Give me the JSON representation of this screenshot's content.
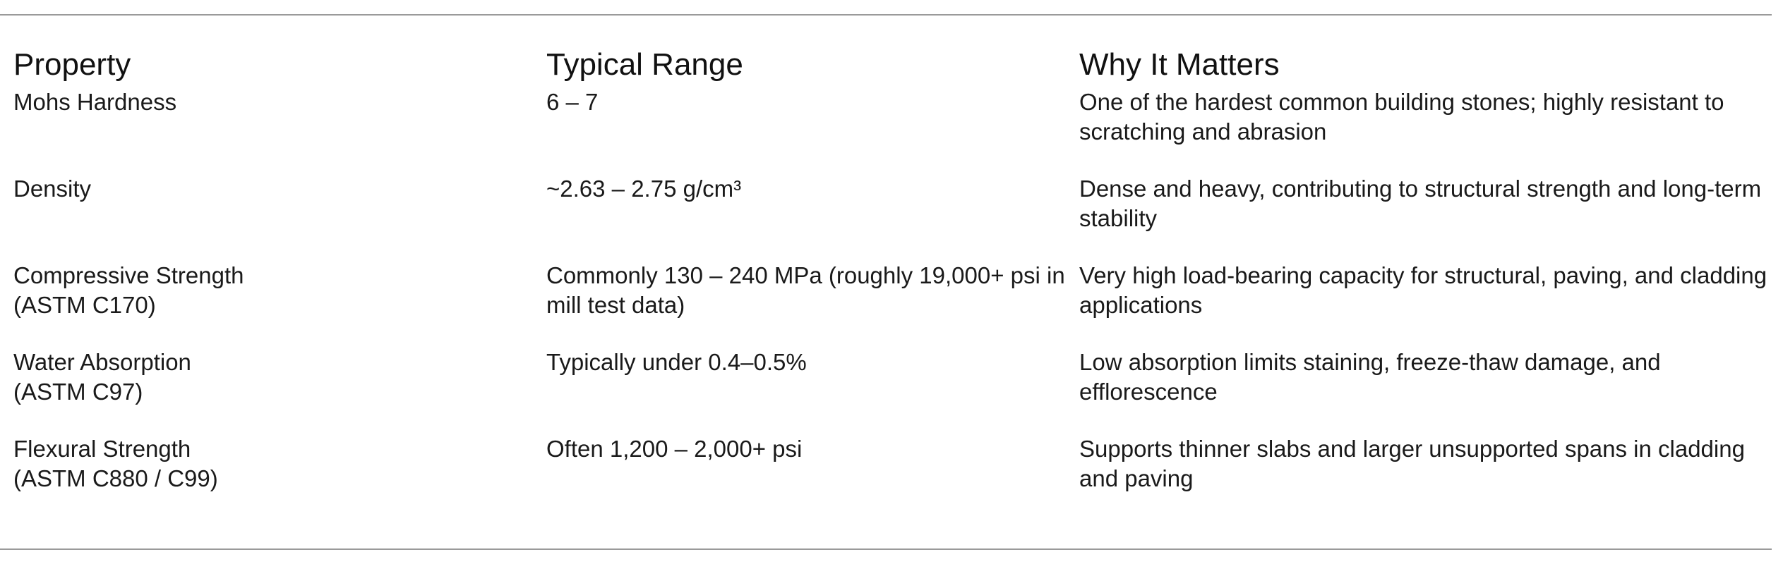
{
  "headers": {
    "property": "Property",
    "range": "Typical Range",
    "why": "Why It Matters"
  },
  "rows": [
    {
      "property_line1": "Mohs Hardness",
      "property_line2": "",
      "range": "6 – 7",
      "why": "One of the hardest common building stones; highly resistant to scratching and abrasion"
    },
    {
      "property_line1": "Density",
      "property_line2": "",
      "range": "~2.63 – 2.75 g/cm³",
      "why": "Dense and heavy, contributing to structural strength and long-term stability"
    },
    {
      "property_line1": "Compressive Strength",
      "property_line2": "(ASTM C170)",
      "range": "Commonly 130 – 240 MPa (roughly 19,000+ psi in mill test data)",
      "why": "Very high load-bearing capacity for structural, paving, and cladding applications"
    },
    {
      "property_line1": "Water Absorption",
      "property_line2": "(ASTM C97)",
      "range": "Typically under 0.4–0.5%",
      "why": "Low absorption limits staining, freeze-thaw damage, and efflorescence"
    },
    {
      "property_line1": "Flexural Strength",
      "property_line2": "(ASTM C880 / C99)",
      "range": "Often 1,200 – 2,000+ psi",
      "why": "Supports thinner slabs and larger unsupported spans in cladding and paving"
    }
  ]
}
